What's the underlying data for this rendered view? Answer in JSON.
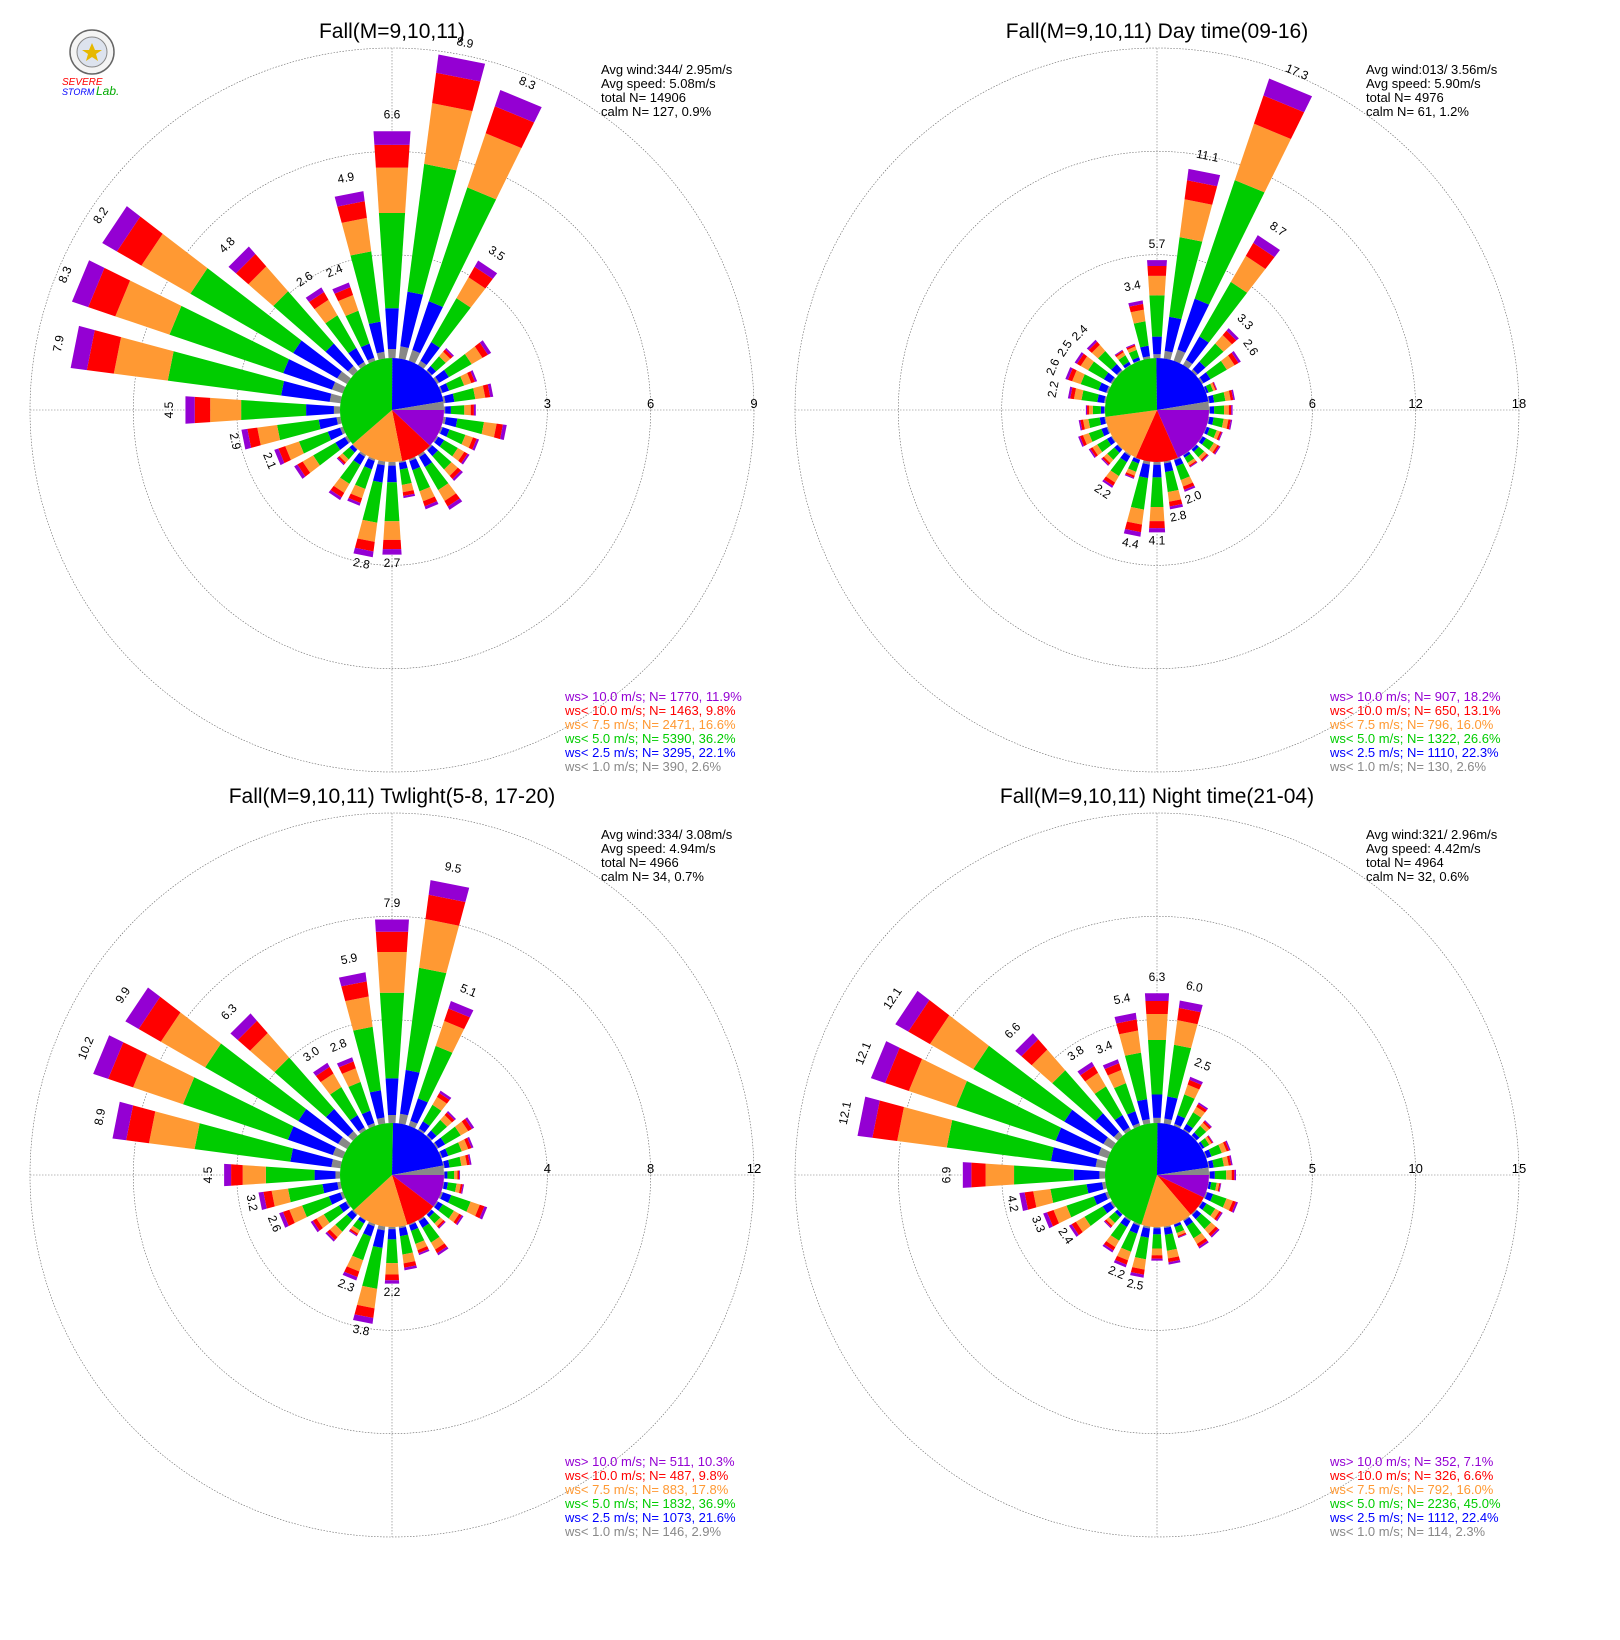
{
  "logo": {
    "line1": "SEVERE",
    "line2": "STORM",
    "line3": "Lab."
  },
  "colors": {
    "ws_gt_10": "#9400d3",
    "ws_lt_10": "#ff0000",
    "ws_lt_7_5": "#ff9933",
    "ws_lt_5": "#00cc00",
    "ws_lt_2_5": "#0000ff",
    "ws_lt_1": "#888888"
  },
  "chart_data": [
    {
      "type": "windrose",
      "title": "Fall(M=9,10,11)",
      "stats": {
        "avg_wind": "Avg wind:344/ 2.95m/s",
        "avg_speed": "Avg speed: 5.08m/s",
        "total": "total N=      14906",
        "calm": "calm N=    127,   0.9%"
      },
      "ring_labels": [
        "3",
        "6",
        "9"
      ],
      "rmax": 9,
      "bar_labels": [
        {
          "label": "8.9",
          "dir": 11,
          "value": 8.9
        },
        {
          "label": "8.3",
          "dir": 22,
          "value": 8.3
        },
        {
          "label": "6.6",
          "dir": 360,
          "value": 6.6
        },
        {
          "label": "3.5",
          "dir": 34,
          "value": 3.5
        },
        {
          "label": "4.9",
          "dir": 349,
          "value": 4.9
        },
        {
          "label": "2.4",
          "dir": 338,
          "value": 2.4
        },
        {
          "label": "2.6",
          "dir": 326,
          "value": 2.6
        },
        {
          "label": "4.8",
          "dir": 315,
          "value": 4.8
        },
        {
          "label": "8.2",
          "dir": 304,
          "value": 8.2
        },
        {
          "label": "8.3",
          "dir": 292,
          "value": 8.3
        },
        {
          "label": "7.9",
          "dir": 281,
          "value": 7.9
        },
        {
          "label": "4.5",
          "dir": 270,
          "value": 4.5
        },
        {
          "label": "2.9",
          "dir": 259,
          "value": 2.9
        },
        {
          "label": "2.1",
          "dir": 248,
          "value": 2.1
        },
        {
          "label": "2.8",
          "dir": 191,
          "value": 2.8
        },
        {
          "label": "2.7",
          "dir": 180,
          "value": 2.7
        }
      ],
      "legend": [
        {
          "text": "ws> 10.0 m/s; N=   1770, 11.9%",
          "color": "#9400d3"
        },
        {
          "text": "ws< 10.0 m/s; N=   1463,  9.8%",
          "color": "#ff0000"
        },
        {
          "text": "ws<  7.5 m/s; N=   2471, 16.6%",
          "color": "#ff9933"
        },
        {
          "text": "ws<  5.0 m/s; N=   5390, 36.2%",
          "color": "#00cc00"
        },
        {
          "text": "ws<  2.5 m/s; N=   3295, 22.1%",
          "color": "#0000ff"
        },
        {
          "text": "ws<  1.0 m/s; N=    390,  2.6%",
          "color": "#888888"
        }
      ],
      "pie": [
        11.9,
        9.8,
        16.6,
        36.2,
        22.1,
        2.6
      ]
    },
    {
      "type": "windrose",
      "title": "Fall(M=9,10,11) Day time(09-16)",
      "stats": {
        "avg_wind": "Avg wind:013/ 3.56m/s",
        "avg_speed": "Avg speed: 5.90m/s",
        "total": "total N=       4976",
        "calm": "calm N=     61,   1.2%"
      },
      "ring_labels": [
        "6",
        "12",
        "18"
      ],
      "rmax": 18,
      "bar_labels": [
        {
          "label": "17.3",
          "dir": 22,
          "value": 17.3
        },
        {
          "label": "11.1",
          "dir": 11,
          "value": 11.1
        },
        {
          "label": "8.7",
          "dir": 34,
          "value": 8.7
        },
        {
          "label": "5.7",
          "dir": 360,
          "value": 5.7
        },
        {
          "label": "3.4",
          "dir": 349,
          "value": 3.4
        },
        {
          "label": "3.3",
          "dir": 45,
          "value": 3.3
        },
        {
          "label": "2.6",
          "dir": 56,
          "value": 2.6
        },
        {
          "label": "2.4",
          "dir": 315,
          "value": 2.4
        },
        {
          "label": "2.5",
          "dir": 304,
          "value": 2.5
        },
        {
          "label": "2.6",
          "dir": 292,
          "value": 2.6
        },
        {
          "label": "2.2",
          "dir": 281,
          "value": 2.2
        },
        {
          "label": "2.2",
          "dir": 214,
          "value": 2.2
        },
        {
          "label": "4.4",
          "dir": 191,
          "value": 4.4
        },
        {
          "label": "4.1",
          "dir": 180,
          "value": 4.1
        },
        {
          "label": "2.8",
          "dir": 169,
          "value": 2.8
        },
        {
          "label": "2.0",
          "dir": 158,
          "value": 2.0
        }
      ],
      "legend": [
        {
          "text": "ws> 10.0 m/s; N=    907, 18.2%",
          "color": "#9400d3"
        },
        {
          "text": "ws< 10.0 m/s; N=    650, 13.1%",
          "color": "#ff0000"
        },
        {
          "text": "ws<  7.5 m/s; N=    796, 16.0%",
          "color": "#ff9933"
        },
        {
          "text": "ws<  5.0 m/s; N=   1322, 26.6%",
          "color": "#00cc00"
        },
        {
          "text": "ws<  2.5 m/s; N=   1110, 22.3%",
          "color": "#0000ff"
        },
        {
          "text": "ws<  1.0 m/s; N=    130,  2.6%",
          "color": "#888888"
        }
      ],
      "pie": [
        18.2,
        13.1,
        16.0,
        26.6,
        22.3,
        2.6
      ]
    },
    {
      "type": "windrose",
      "title": "Fall(M=9,10,11) Twlight(5-8, 17-20)",
      "stats": {
        "avg_wind": "Avg wind:334/ 3.08m/s",
        "avg_speed": "Avg speed: 4.94m/s",
        "total": "total N=       4966",
        "calm": "calm N=     34,   0.7%"
      },
      "ring_labels": [
        "4",
        "8",
        "12"
      ],
      "rmax": 12,
      "bar_labels": [
        {
          "label": "9.5",
          "dir": 11,
          "value": 9.5
        },
        {
          "label": "7.9",
          "dir": 360,
          "value": 7.9
        },
        {
          "label": "5.1",
          "dir": 22,
          "value": 5.1
        },
        {
          "label": "5.9",
          "dir": 349,
          "value": 5.9
        },
        {
          "label": "2.8",
          "dir": 338,
          "value": 2.8
        },
        {
          "label": "3.0",
          "dir": 326,
          "value": 3.0
        },
        {
          "label": "6.3",
          "dir": 315,
          "value": 6.3
        },
        {
          "label": "9.9",
          "dir": 304,
          "value": 9.9
        },
        {
          "label": "10.2",
          "dir": 292,
          "value": 10.2
        },
        {
          "label": "8.9",
          "dir": 281,
          "value": 8.9
        },
        {
          "label": "4.5",
          "dir": 270,
          "value": 4.5
        },
        {
          "label": "3.2",
          "dir": 259,
          "value": 3.2
        },
        {
          "label": "2.6",
          "dir": 248,
          "value": 2.6
        },
        {
          "label": "2.3",
          "dir": 202,
          "value": 2.3
        },
        {
          "label": "3.8",
          "dir": 191,
          "value": 3.8
        },
        {
          "label": "2.2",
          "dir": 180,
          "value": 2.2
        }
      ],
      "legend": [
        {
          "text": "ws> 10.0 m/s; N=    511, 10.3%",
          "color": "#9400d3"
        },
        {
          "text": "ws< 10.0 m/s; N=    487,  9.8%",
          "color": "#ff0000"
        },
        {
          "text": "ws<  7.5 m/s; N=    883, 17.8%",
          "color": "#ff9933"
        },
        {
          "text": "ws<  5.0 m/s; N=   1832, 36.9%",
          "color": "#00cc00"
        },
        {
          "text": "ws<  2.5 m/s; N=   1073, 21.6%",
          "color": "#0000ff"
        },
        {
          "text": "ws<  1.0 m/s; N=    146,  2.9%",
          "color": "#888888"
        }
      ],
      "pie": [
        10.3,
        9.8,
        17.8,
        36.9,
        21.6,
        2.9
      ]
    },
    {
      "type": "windrose",
      "title": "Fall(M=9,10,11) Night time(21-04)",
      "stats": {
        "avg_wind": "Avg wind:321/ 2.96m/s",
        "avg_speed": "Avg speed: 4.42m/s",
        "total": "total N=       4964",
        "calm": "calm N=     32,   0.6%"
      },
      "ring_labels": [
        "5",
        "10",
        "15"
      ],
      "rmax": 15,
      "bar_labels": [
        {
          "label": "6.3",
          "dir": 360,
          "value": 6.3
        },
        {
          "label": "6.0",
          "dir": 11,
          "value": 6.0
        },
        {
          "label": "2.5",
          "dir": 22,
          "value": 2.5
        },
        {
          "label": "5.4",
          "dir": 349,
          "value": 5.4
        },
        {
          "label": "3.4",
          "dir": 338,
          "value": 3.4
        },
        {
          "label": "3.8",
          "dir": 326,
          "value": 3.8
        },
        {
          "label": "6.6",
          "dir": 315,
          "value": 6.6
        },
        {
          "label": "12.1",
          "dir": 304,
          "value": 12.1
        },
        {
          "label": "12.1",
          "dir": 292,
          "value": 12.1
        },
        {
          "label": "12.1",
          "dir": 281,
          "value": 12.1
        },
        {
          "label": "6.9",
          "dir": 270,
          "value": 6.9
        },
        {
          "label": "4.2",
          "dir": 259,
          "value": 4.2
        },
        {
          "label": "3.3",
          "dir": 248,
          "value": 3.3
        },
        {
          "label": "2.4",
          "dir": 236,
          "value": 2.4
        },
        {
          "label": "2.2",
          "dir": 202,
          "value": 2.2
        },
        {
          "label": "2.5",
          "dir": 191,
          "value": 2.5
        }
      ],
      "legend": [
        {
          "text": "ws> 10.0 m/s; N=    352,  7.1%",
          "color": "#9400d3"
        },
        {
          "text": "ws< 10.0 m/s; N=    326,  6.6%",
          "color": "#ff0000"
        },
        {
          "text": "ws<  7.5 m/s; N=    792, 16.0%",
          "color": "#ff9933"
        },
        {
          "text": "ws<  5.0 m/s; N=   2236, 45.0%",
          "color": "#00cc00"
        },
        {
          "text": "ws<  2.5 m/s; N=   1112, 22.4%",
          "color": "#0000ff"
        },
        {
          "text": "ws<  1.0 m/s; N=    114,  2.3%",
          "color": "#888888"
        }
      ],
      "pie": [
        7.1,
        6.6,
        16.0,
        45.0,
        22.4,
        2.3
      ]
    }
  ]
}
